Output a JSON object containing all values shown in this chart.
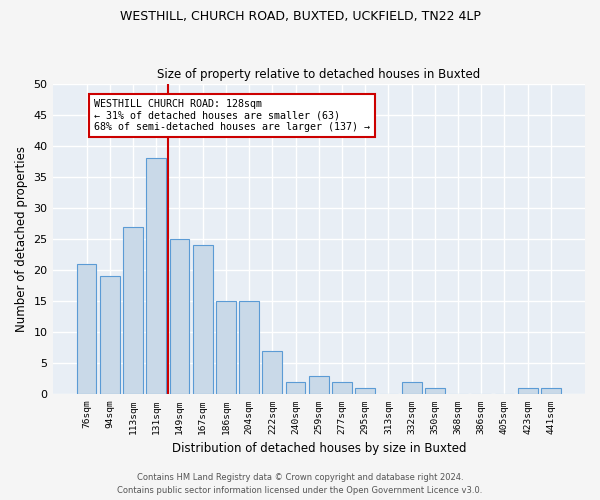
{
  "title1": "WESTHILL, CHURCH ROAD, BUXTED, UCKFIELD, TN22 4LP",
  "title2": "Size of property relative to detached houses in Buxted",
  "xlabel": "Distribution of detached houses by size in Buxted",
  "ylabel": "Number of detached properties",
  "footnote1": "Contains HM Land Registry data © Crown copyright and database right 2024.",
  "footnote2": "Contains public sector information licensed under the Open Government Licence v3.0.",
  "bar_labels": [
    "76sqm",
    "94sqm",
    "113sqm",
    "131sqm",
    "149sqm",
    "167sqm",
    "186sqm",
    "204sqm",
    "222sqm",
    "240sqm",
    "259sqm",
    "277sqm",
    "295sqm",
    "313sqm",
    "332sqm",
    "350sqm",
    "368sqm",
    "386sqm",
    "405sqm",
    "423sqm",
    "441sqm"
  ],
  "bar_values": [
    21,
    19,
    27,
    38,
    25,
    24,
    15,
    15,
    7,
    2,
    3,
    2,
    1,
    0,
    2,
    1,
    0,
    0,
    0,
    1,
    1
  ],
  "bar_color": "#c9d9e8",
  "bar_edge_color": "#5b9bd5",
  "background_color": "#e8eef5",
  "grid_color": "#ffffff",
  "vline_x": 3.5,
  "vline_color": "#cc0000",
  "annotation_line1": "WESTHILL CHURCH ROAD: 128sqm",
  "annotation_line2": "← 31% of detached houses are smaller (63)",
  "annotation_line3": "68% of semi-detached houses are larger (137) →",
  "ylim": [
    0,
    50
  ],
  "yticks": [
    0,
    5,
    10,
    15,
    20,
    25,
    30,
    35,
    40,
    45,
    50
  ]
}
